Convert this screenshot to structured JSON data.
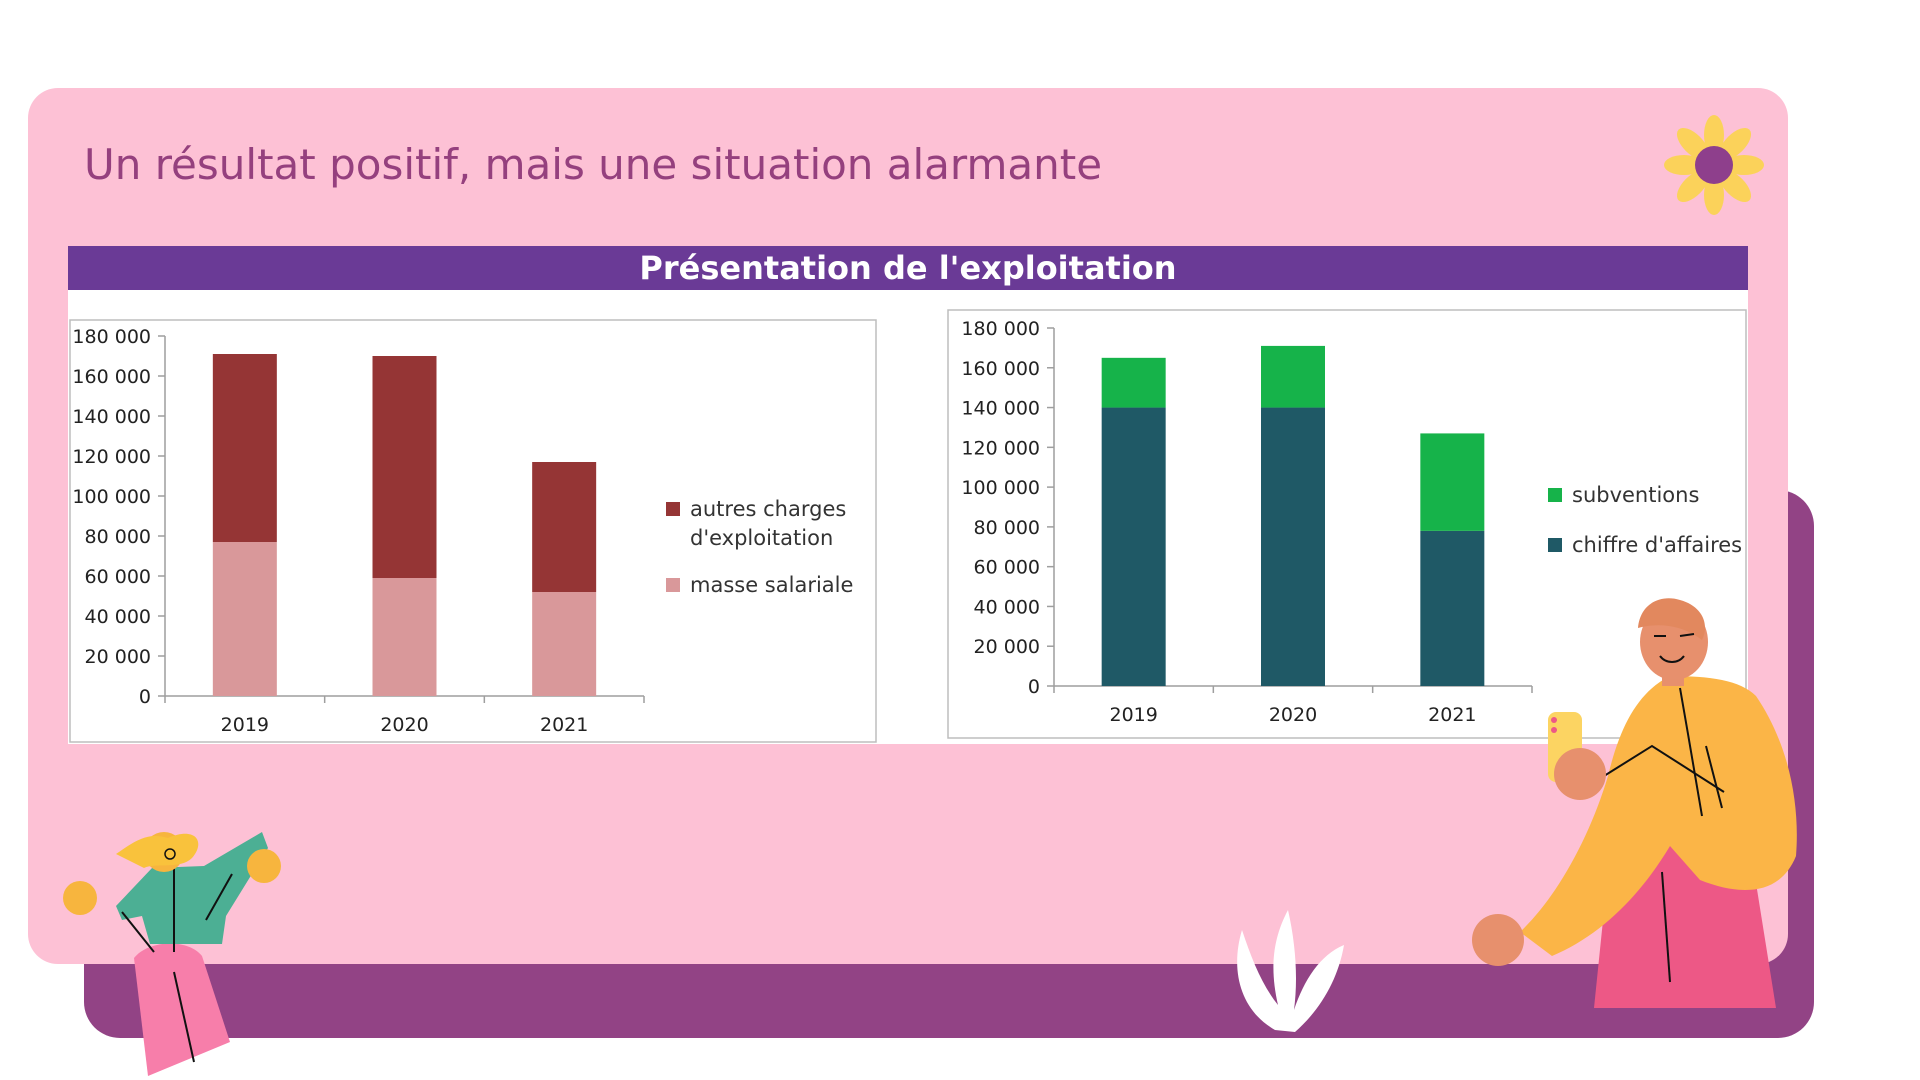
{
  "slide": {
    "title": "Un résultat positif, mais une situation alarmante",
    "banner_title": "Présentation de l'exploitation"
  },
  "colors": {
    "front_card": "#fdc1d5",
    "back_card": "#924385",
    "title": "#95407e",
    "banner": "#6a3a96"
  },
  "chart_data": [
    {
      "type": "bar",
      "stacked": true,
      "categories": [
        "2019",
        "2020",
        "2021"
      ],
      "series": [
        {
          "name": "masse salariale",
          "values": [
            77000,
            59000,
            52000
          ],
          "color": "#d9989a"
        },
        {
          "name": "autres charges\nd'exploitation",
          "values": [
            94000,
            111000,
            65000
          ],
          "color": "#953535"
        }
      ],
      "ylim": [
        0,
        180000
      ],
      "yticks": [
        "0",
        "20 000",
        "40 000",
        "60 000",
        "80 000",
        "100 000",
        "120 000",
        "140 000",
        "160 000",
        "180 000"
      ],
      "legend": [
        "autres charges\nd'exploitation",
        "masse salariale"
      ],
      "legend_position": "right",
      "grid": false
    },
    {
      "type": "bar",
      "stacked": true,
      "categories": [
        "2019",
        "2020",
        "2021"
      ],
      "series": [
        {
          "name": "chiffre d'affaires",
          "values": [
            140000,
            140000,
            78000
          ],
          "color": "#1f5966"
        },
        {
          "name": "subventions",
          "values": [
            25000,
            31000,
            49000
          ],
          "color": "#16b34a"
        }
      ],
      "ylim": [
        0,
        180000
      ],
      "yticks": [
        "0",
        "20 000",
        "40 000",
        "60 000",
        "80 000",
        "100 000",
        "120 000",
        "140 000",
        "160 000",
        "180 000"
      ],
      "legend": [
        "subventions",
        "chiffre d'affaires"
      ],
      "legend_position": "right",
      "grid": false
    }
  ]
}
